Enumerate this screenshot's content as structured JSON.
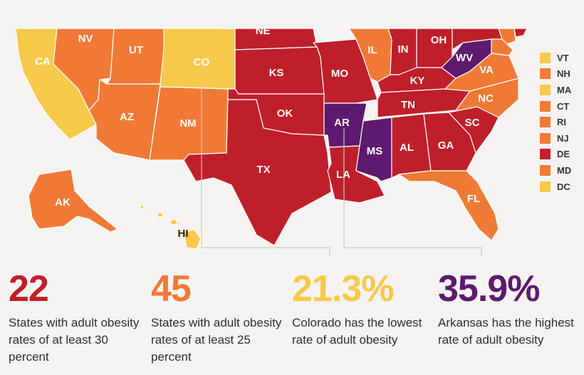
{
  "colors": {
    "yellow": "#f7c94a",
    "orange": "#f07a35",
    "red": "#bf1f2a",
    "purple": "#5e1a6e"
  },
  "map": {
    "states": [
      {
        "code": "CA",
        "category": "yellow"
      },
      {
        "code": "NV",
        "category": "orange"
      },
      {
        "code": "UT",
        "category": "orange"
      },
      {
        "code": "CO",
        "category": "yellow"
      },
      {
        "code": "AZ",
        "category": "orange"
      },
      {
        "code": "NM",
        "category": "orange"
      },
      {
        "code": "NE",
        "category": "red"
      },
      {
        "code": "KS",
        "category": "red"
      },
      {
        "code": "OK",
        "category": "red"
      },
      {
        "code": "TX",
        "category": "red"
      },
      {
        "code": "MO",
        "category": "red"
      },
      {
        "code": "AR",
        "category": "purple"
      },
      {
        "code": "LA",
        "category": "red"
      },
      {
        "code": "IL",
        "category": "orange"
      },
      {
        "code": "IN",
        "category": "red"
      },
      {
        "code": "OH",
        "category": "red"
      },
      {
        "code": "KY",
        "category": "red"
      },
      {
        "code": "TN",
        "category": "red"
      },
      {
        "code": "MS",
        "category": "purple"
      },
      {
        "code": "AL",
        "category": "red"
      },
      {
        "code": "GA",
        "category": "red"
      },
      {
        "code": "SC",
        "category": "red"
      },
      {
        "code": "NC",
        "category": "orange"
      },
      {
        "code": "VA",
        "category": "orange"
      },
      {
        "code": "WV",
        "category": "purple"
      },
      {
        "code": "FL",
        "category": "orange"
      },
      {
        "code": "AK",
        "category": "orange"
      },
      {
        "code": "HI",
        "category": "yellow"
      },
      {
        "code": "NJ",
        "category": "orange"
      }
    ]
  },
  "legend": [
    {
      "label": "VT",
      "category": "yellow"
    },
    {
      "label": "NH",
      "category": "orange"
    },
    {
      "label": "MA",
      "category": "yellow"
    },
    {
      "label": "CT",
      "category": "orange"
    },
    {
      "label": "RI",
      "category": "orange"
    },
    {
      "label": "NJ",
      "category": "orange"
    },
    {
      "label": "DE",
      "category": "red"
    },
    {
      "label": "MD",
      "category": "orange"
    },
    {
      "label": "DC",
      "category": "yellow"
    }
  ],
  "stats": [
    {
      "value": "22",
      "category": "red",
      "description": "States with adult obesity rates of at least 30 percent"
    },
    {
      "value": "45",
      "category": "orange",
      "description": "States with adult obesity rates of at least 25 percent"
    },
    {
      "value": "21.3%",
      "category": "yellow",
      "description": "Colorado has the lowest rate of adult obesity"
    },
    {
      "value": "35.9%",
      "category": "purple",
      "description": "Arkansas has the highest rate of adult obesity"
    }
  ]
}
